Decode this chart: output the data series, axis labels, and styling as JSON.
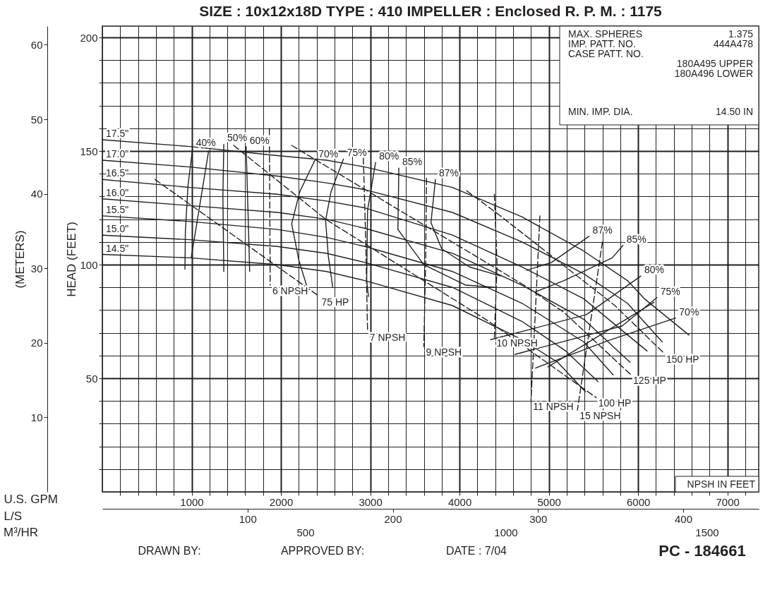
{
  "chart_data": {
    "type": "line",
    "title": "SIZE : 10x12x18D   TYPE : 410   IMPELLER : Enclosed   R. P. M. : 1175",
    "xlabel": "U.S. GPM",
    "x2label": "L/S",
    "ylabel": "HEAD (FEET)",
    "y2label": "(METERS)",
    "color": "#231f20",
    "grid": true,
    "legend": false,
    "xlim": [
      0,
      7350
    ],
    "xticks": [
      {
        "value": 200,
        "label": null
      },
      {
        "value": 400,
        "label": null
      },
      {
        "value": 600,
        "label": null
      },
      {
        "value": 800,
        "label": null
      },
      1000,
      {
        "value": 1200,
        "label": null
      },
      {
        "value": 1400,
        "label": null
      },
      {
        "value": 1600,
        "label": null
      },
      {
        "value": 1800,
        "label": null
      },
      2000,
      {
        "value": 2200,
        "label": null
      },
      {
        "value": 2400,
        "label": null
      },
      {
        "value": 2600,
        "label": null
      },
      {
        "value": 2800,
        "label": null
      },
      3000,
      {
        "value": 3200,
        "label": null
      },
      {
        "value": 3400,
        "label": null
      },
      {
        "value": 3600,
        "label": null
      },
      {
        "value": 3800,
        "label": null
      },
      4000,
      {
        "value": 4200,
        "label": null
      },
      {
        "value": 4400,
        "label": null
      },
      {
        "value": 4600,
        "label": null
      },
      {
        "value": 4800,
        "label": null
      },
      5000,
      {
        "value": 5200,
        "label": null
      },
      {
        "value": 5400,
        "label": null
      },
      {
        "value": 5600,
        "label": null
      },
      {
        "value": 5800,
        "label": null
      },
      6000,
      {
        "value": 6200,
        "label": null
      },
      {
        "value": 6400,
        "label": null
      },
      {
        "value": 6600,
        "label": null
      },
      {
        "value": 6800,
        "label": null
      },
      7000,
      {
        "value": 7200,
        "label": null
      }
    ],
    "x2lim": [
      0,
      452
    ],
    "x2ticks": [
      100,
      200,
      300,
      400
    ],
    "ylim": [
      0,
      205
    ],
    "yticks": [
      {
        "value": 10,
        "label": null
      },
      {
        "value": 20,
        "label": null
      },
      {
        "value": 30,
        "label": null
      },
      {
        "value": 40,
        "label": null
      },
      50,
      {
        "value": 60,
        "label": null
      },
      {
        "value": 70,
        "label": null
      },
      {
        "value": 80,
        "label": null
      },
      {
        "value": 90,
        "label": null
      },
      100,
      {
        "value": 110,
        "label": null
      },
      {
        "value": 120,
        "label": null
      },
      {
        "value": 130,
        "label": null
      },
      {
        "value": 140,
        "label": null
      },
      150,
      {
        "value": 160,
        "label": null
      },
      {
        "value": 170,
        "label": null
      },
      {
        "value": 180,
        "label": null
      },
      {
        "value": 190,
        "label": null
      },
      200
    ],
    "y2lim": [
      0,
      62.5
    ],
    "y2ticks": [
      10,
      20,
      30,
      40,
      50,
      60
    ],
    "series": [
      {
        "name": "17.5\"",
        "x": [
          0,
          980,
          1960,
          2510,
          2940,
          3920,
          4700,
          5390,
          5880,
          6070,
          6570
        ],
        "values": [
          155,
          152,
          148,
          146,
          143,
          134,
          121,
          106,
          93,
          85,
          69
        ]
      },
      {
        "name": "17.0\"",
        "x": [
          0,
          980,
          1960,
          2510,
          2940,
          3920,
          4700,
          5390,
          5880,
          6270
        ],
        "values": [
          146,
          143,
          139,
          136,
          133,
          123,
          110,
          96,
          83,
          66
        ]
      },
      {
        "name": "16.5\"",
        "x": [
          0,
          980,
          1960,
          2510,
          2940,
          3920,
          4700,
          5390,
          6100
        ],
        "values": [
          137.5,
          134,
          131,
          128,
          125,
          113,
          99,
          85,
          62
        ]
      },
      {
        "name": "16.0\"",
        "x": [
          0,
          980,
          1960,
          2510,
          2940,
          3920,
          4700,
          5390,
          5910
        ],
        "values": [
          129,
          126,
          123,
          120,
          116,
          105,
          91,
          76,
          57
        ]
      },
      {
        "name": "15.5\"",
        "x": [
          0,
          980,
          1960,
          2510,
          2940,
          3920,
          4700,
          5390,
          5720
        ],
        "values": [
          121.5,
          119,
          115.5,
          112,
          108,
          97,
          83,
          66,
          51.5
        ]
      },
      {
        "name": "15.0\"",
        "x": [
          0,
          980,
          1960,
          2510,
          2940,
          3920,
          4700,
          5190,
          5550
        ],
        "values": [
          113,
          111,
          108,
          105,
          101,
          90,
          75,
          62,
          48.5
        ]
      },
      {
        "name": "14.5\"",
        "x": [
          0,
          980,
          1960,
          2510,
          2940,
          3920,
          4700,
          5100,
          5410
        ],
        "values": [
          104.5,
          103,
          100,
          97,
          93,
          82,
          67,
          57,
          44
        ]
      },
      {
        "name": "40%",
        "x": [
          1010,
          960,
          930,
          925
        ],
        "values": [
          151,
          135,
          115,
          98
        ]
      },
      {
        "name": "50%",
        "x": [
          1360,
          1350,
          1360
        ],
        "values": [
          153,
          130,
          97
        ]
      },
      {
        "name": "60%",
        "x": [
          1610,
          1630,
          1650
        ],
        "values": [
          152,
          125,
          97
        ]
      },
      {
        "name": "70%",
        "x": [
          2380,
          2210,
          2120,
          2200,
          2310
        ],
        "values": [
          146,
          132,
          118,
          102,
          88
        ]
      },
      {
        "name": "75%",
        "x": [
          2700,
          2560,
          2500,
          2530,
          2580
        ],
        "values": [
          146.5,
          132,
          119.5,
          104,
          90
        ]
      },
      {
        "name": "80%",
        "x": [
          3060,
          2970,
          2960,
          2980
        ],
        "values": [
          145,
          124,
          93,
          86
        ]
      },
      {
        "name": "85%",
        "x": [
          3320,
          3310,
          3600,
          4070,
          4400
        ],
        "values": [
          142.5,
          115.5,
          100,
          91,
          90
        ]
      },
      {
        "name": "87%",
        "x": [
          3730,
          3680,
          3800,
          4110,
          4460
        ],
        "values": [
          137.5,
          118.5,
          107,
          99,
          95
        ]
      },
      {
        "name": "87%",
        "x": [
          5450,
          5030,
          4750
        ],
        "values": [
          112.5,
          101,
          97.5
        ]
      },
      {
        "name": "85%",
        "x": [
          5830,
          5710,
          5170,
          4850
        ],
        "values": [
          108.5,
          103,
          93,
          88
        ]
      },
      {
        "name": "80%",
        "x": [
          6030,
          5420,
          4350
        ],
        "values": [
          95,
          78,
          67
        ]
      },
      {
        "name": "75%",
        "x": [
          6210,
          5820,
          4620
        ],
        "values": [
          85.5,
          73,
          60.5
        ]
      },
      {
        "name": "70%",
        "x": [
          6420,
          5660,
          4850
        ],
        "values": [
          76.5,
          66.5,
          54.5
        ]
      },
      {
        "name": "6 NPSH",
        "line_style": "dashed",
        "x": [
          1870,
          1880
        ],
        "values": [
          160,
          91
        ]
      },
      {
        "name": "7 NPSH",
        "line_style": "dashed",
        "x": [
          2920,
          2950,
          2970
        ],
        "values": [
          151,
          110,
          70.5
        ]
      },
      {
        "name": "9 NPSH",
        "line_style": "dashed",
        "x": [
          3630,
          3620,
          3600
        ],
        "values": [
          138,
          100,
          64
        ]
      },
      {
        "name": "10 NPSH",
        "line_style": "dashed",
        "x": [
          4390,
          4420,
          4390
        ],
        "values": [
          131,
          100,
          68
        ]
      },
      {
        "name": "11 NPSH",
        "line_style": "dashed",
        "x": [
          4900,
          4850,
          4800
        ],
        "values": [
          121.5,
          80,
          40
        ]
      },
      {
        "name": "15 NPSH",
        "line_style": "dashed",
        "x": [
          5600,
          5460,
          5320
        ],
        "values": [
          110,
          73,
          36
        ]
      },
      {
        "name": "75 HP",
        "line_style": "dashed",
        "x": [
          590,
          2430
        ],
        "values": [
          137.5,
          86
        ]
      },
      {
        "name": "100 HP",
        "line_style": "dashed",
        "x": [
          1470,
          2500,
          4330,
          5530
        ],
        "values": [
          152.5,
          120,
          75,
          41.5
        ]
      },
      {
        "name": "125 HP",
        "line_style": "dashed",
        "x": [
          2120,
          4720,
          5170,
          5920
        ],
        "values": [
          152.5,
          91,
          79,
          51.5
        ]
      },
      {
        "name": "150 HP",
        "line_style": "dashed",
        "x": [
          4080,
          4440,
          5740,
          6290
        ],
        "values": [
          132.5,
          122,
          82,
          61
        ]
      },
      {
        "x": [
          1190,
          995
        ],
        "values": [
          150,
          103
        ]
      },
      {
        "x": [
          4990,
          6180
        ],
        "values": [
          55,
          83.5
        ]
      }
    ],
    "annotations": [
      "MAX. SPHERES",
      "1.375",
      "IMP. PATT. NO.",
      "444A478",
      "CASE PATT. NO.",
      "180A495 UPPER",
      "180A496 LOWER",
      "MIN. IMP. DIA.",
      "14.50 IN",
      "NPSH IN FEET",
      "DRAWN BY:",
      "APPROVED BY:",
      "DATE : 7/04",
      "PC - 184661",
      "M³/HR",
      "500",
      "1000",
      "1500"
    ]
  }
}
